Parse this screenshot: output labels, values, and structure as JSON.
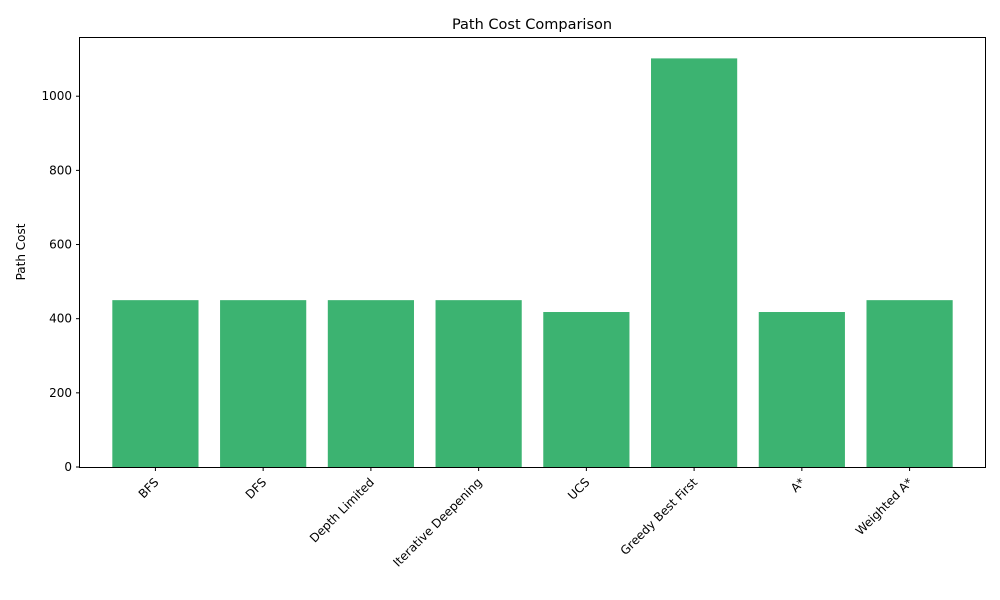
{
  "chart_data": {
    "type": "bar",
    "title": "Path Cost Comparison",
    "xlabel": "",
    "ylabel": "Path Cost",
    "categories": [
      "BFS",
      "DFS",
      "Depth Limited",
      "Iterative Deepening",
      "UCS",
      "Greedy Best First",
      "A*",
      "Weighted A*"
    ],
    "values": [
      450,
      450,
      450,
      450,
      418,
      1102,
      418,
      450
    ],
    "ylim": [
      0,
      1157
    ],
    "yticks": [
      0,
      200,
      400,
      600,
      800,
      1000
    ],
    "bar_color": "#3cb371",
    "grid": false,
    "legend": "none"
  }
}
